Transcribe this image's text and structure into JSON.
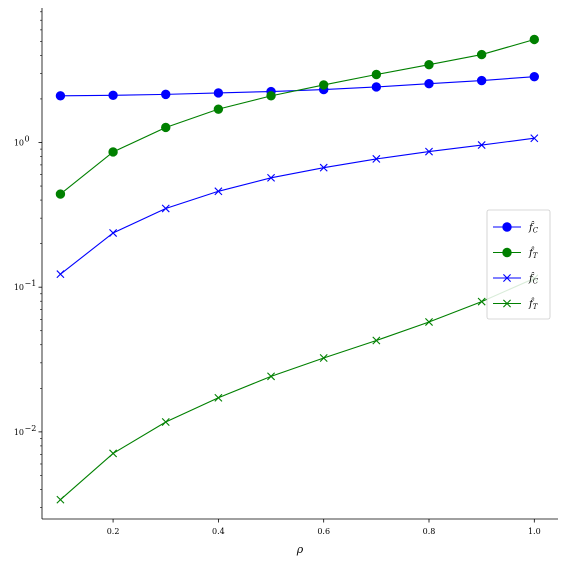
{
  "chart_data": {
    "type": "line",
    "xlabel": "ρ",
    "ylabel": "",
    "yscale": "log",
    "xlim": [
      0.065,
      1.045
    ],
    "ylim": [
      0.0025,
      8.5
    ],
    "xticks": [
      0.2,
      0.4,
      0.6,
      0.8,
      1.0
    ],
    "xtick_labels": [
      "0.2",
      "0.4",
      "0.6",
      "0.8",
      "1.0"
    ],
    "yticks": [
      0.01,
      0.1,
      1
    ],
    "ytick_labels": [
      "10",
      "10",
      "10"
    ],
    "ytick_exponents": [
      "−2",
      "−1",
      "0"
    ],
    "grid": false,
    "legend_position": "center-right",
    "x": [
      0.1,
      0.2,
      0.3,
      0.4,
      0.5,
      0.6,
      0.7,
      0.8,
      0.9,
      1.0
    ],
    "series": [
      {
        "name": "f̂C",
        "legend_base": "f̂",
        "legend_sub": "C",
        "color": "#0000ff",
        "marker": "circle",
        "values": [
          2.1,
          2.12,
          2.15,
          2.2,
          2.25,
          2.32,
          2.42,
          2.55,
          2.68,
          2.85
        ]
      },
      {
        "name": "f̂T",
        "legend_base": "f̂",
        "legend_sub": "T",
        "color": "#008000",
        "marker": "circle",
        "values": [
          0.44,
          0.86,
          1.27,
          1.7,
          2.1,
          2.5,
          2.95,
          3.45,
          4.05,
          5.15
        ]
      },
      {
        "name": "f̂C",
        "legend_base": "f̂",
        "legend_sub": "C",
        "color": "#0000ff",
        "marker": "x",
        "values": [
          0.123,
          0.237,
          0.35,
          0.46,
          0.57,
          0.67,
          0.77,
          0.865,
          0.96,
          1.07
        ]
      },
      {
        "name": "f̂T",
        "legend_base": "f̂",
        "legend_sub": "T",
        "color": "#008000",
        "marker": "x",
        "values": [
          0.0034,
          0.0071,
          0.0117,
          0.0172,
          0.0242,
          0.0324,
          0.0428,
          0.0575,
          0.0795,
          0.115
        ]
      }
    ]
  }
}
